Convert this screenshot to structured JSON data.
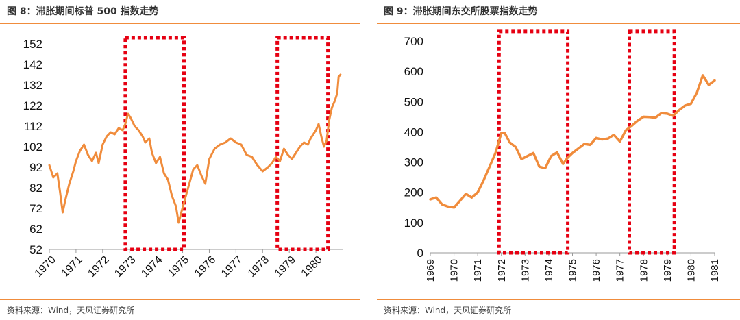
{
  "panels": [
    {
      "title": "图 8：滞胀期间标普 500 指数走势",
      "source": "资料来源：Wind，天风证券研究所"
    },
    {
      "title": "图 9：滞胀期间东交所股票指数走势",
      "source": "资料来源：Wind，天风证券研究所"
    }
  ],
  "chart_data": [
    {
      "type": "line",
      "title": "",
      "xlabel": "",
      "ylabel": "",
      "xlim": [
        1970,
        1981
      ],
      "ylim": [
        52,
        152
      ],
      "yticks": [
        52,
        62,
        72,
        82,
        92,
        102,
        112,
        122,
        132,
        142,
        152
      ],
      "xticks": [
        "1970",
        "1971",
        "1972",
        "1973",
        "1974",
        "1975",
        "1976",
        "1977",
        "1978",
        "1979",
        "1980"
      ],
      "grid": false,
      "line_color": "#f08c3c",
      "highlight_color": "#e60012",
      "highlights": [
        {
          "x": [
            1972.85,
            1975.05
          ],
          "y": [
            52,
            155
          ]
        },
        {
          "x": [
            1978.55,
            1980.45
          ],
          "y": [
            52,
            155
          ]
        }
      ],
      "series": [
        {
          "x": [
            1970.0,
            1970.15,
            1970.3,
            1970.4,
            1970.5,
            1970.6,
            1970.75,
            1970.9,
            1971.0,
            1971.15,
            1971.3,
            1971.45,
            1971.6,
            1971.75,
            1971.85,
            1972.0,
            1972.15,
            1972.3,
            1972.45,
            1972.6,
            1972.75,
            1972.85,
            1972.95,
            1973.05,
            1973.2,
            1973.35,
            1973.5,
            1973.6,
            1973.75,
            1973.85,
            1974.0,
            1974.15,
            1974.3,
            1974.45,
            1974.6,
            1974.75,
            1974.85,
            1974.95,
            1975.1,
            1975.25,
            1975.4,
            1975.55,
            1975.7,
            1975.85,
            1976.0,
            1976.2,
            1976.4,
            1976.6,
            1976.8,
            1977.0,
            1977.2,
            1977.4,
            1977.6,
            1977.8,
            1978.0,
            1978.2,
            1978.35,
            1978.5,
            1978.65,
            1978.8,
            1978.95,
            1979.1,
            1979.25,
            1979.4,
            1979.55,
            1979.7,
            1979.8,
            1979.9,
            1980.0,
            1980.1,
            1980.2,
            1980.3,
            1980.4,
            1980.5,
            1980.6,
            1980.7,
            1980.8,
            1980.85,
            1980.92
          ],
          "values": [
            93,
            87,
            89,
            80,
            70,
            76,
            84,
            90,
            95,
            100,
            103,
            98,
            95,
            99,
            94,
            103,
            107,
            109,
            108,
            111,
            110,
            113,
            118,
            116,
            112,
            110,
            107,
            104,
            106,
            99,
            94,
            97,
            89,
            86,
            78,
            73,
            65,
            70,
            77,
            84,
            91,
            93,
            88,
            84,
            96,
            101,
            103,
            104,
            106,
            104,
            103,
            98,
            97,
            93,
            90,
            92,
            94,
            97,
            95,
            101,
            98,
            96,
            99,
            102,
            104,
            103,
            106,
            108,
            110,
            113,
            107,
            102,
            105,
            115,
            121,
            124,
            128,
            136,
            137
          ]
        }
      ]
    },
    {
      "type": "line",
      "title": "",
      "xlabel": "",
      "ylabel": "",
      "xlim": [
        1969,
        1981
      ],
      "ylim": [
        0,
        700
      ],
      "yticks": [
        0,
        100,
        200,
        300,
        400,
        500,
        600,
        700
      ],
      "xticks": [
        "1969",
        "1970",
        "1971",
        "1972",
        "1973",
        "1974",
        "1975",
        "1976",
        "1977",
        "1978",
        "1979",
        "1980",
        "1981"
      ],
      "grid": false,
      "line_color": "#f08c3c",
      "highlight_color": "#e60012",
      "highlights": [
        {
          "x": [
            1971.9,
            1974.8
          ],
          "y": [
            0,
            732
          ]
        },
        {
          "x": [
            1977.4,
            1979.3
          ],
          "y": [
            0,
            732
          ]
        }
      ],
      "series": [
        {
          "x": [
            1969.0,
            1969.25,
            1969.5,
            1969.75,
            1970.0,
            1970.25,
            1970.5,
            1970.75,
            1971.0,
            1971.25,
            1971.5,
            1971.75,
            1972.0,
            1972.15,
            1972.35,
            1972.6,
            1972.85,
            1973.1,
            1973.35,
            1973.6,
            1973.85,
            1974.1,
            1974.35,
            1974.6,
            1974.8,
            1975.0,
            1975.25,
            1975.5,
            1975.75,
            1976.0,
            1976.25,
            1976.5,
            1976.75,
            1977.0,
            1977.25,
            1977.5,
            1977.75,
            1978.0,
            1978.25,
            1978.5,
            1978.75,
            1979.0,
            1979.25,
            1979.5,
            1979.75,
            1980.0,
            1980.25,
            1980.5,
            1980.75,
            1981.0
          ],
          "values": [
            177,
            183,
            160,
            153,
            150,
            172,
            195,
            183,
            200,
            240,
            285,
            330,
            397,
            395,
            365,
            350,
            310,
            320,
            330,
            285,
            280,
            320,
            332,
            294,
            315,
            330,
            345,
            360,
            357,
            380,
            375,
            378,
            390,
            368,
            405,
            420,
            437,
            450,
            449,
            447,
            462,
            460,
            453,
            472,
            487,
            493,
            530,
            587,
            555,
            570
          ]
        }
      ]
    }
  ]
}
